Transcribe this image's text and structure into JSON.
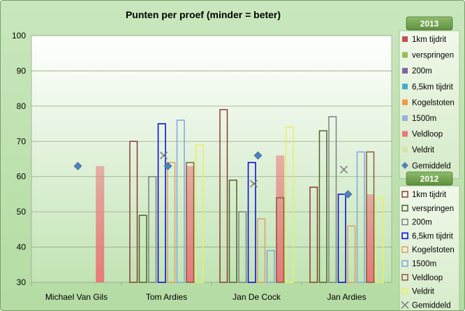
{
  "chart_data": {
    "type": "bar",
    "title": "Punten per proef (minder = beter)",
    "categories": [
      "Michael Van Gils",
      "Tom Ardies",
      "Jan De Cock",
      "Jan Ardies"
    ],
    "ylim": [
      30,
      100
    ],
    "yticks": [
      30,
      40,
      50,
      60,
      70,
      80,
      90,
      100
    ],
    "grid": true,
    "legend_position": "right",
    "groups": [
      {
        "name": "2013",
        "style": "filled",
        "series": [
          {
            "name": "1km tijdrit",
            "color": "#c0504d",
            "values": [
              null,
              null,
              null,
              null
            ]
          },
          {
            "name": "verspringen",
            "color": "#9bbb59",
            "values": [
              null,
              null,
              null,
              null
            ]
          },
          {
            "name": "200m",
            "color": "#8064a2",
            "values": [
              null,
              null,
              null,
              null
            ]
          },
          {
            "name": "6,5km tijdrit",
            "color": "#4bacc6",
            "values": [
              null,
              null,
              null,
              null
            ]
          },
          {
            "name": "Kogelstoten",
            "color": "#f79646",
            "values": [
              null,
              null,
              null,
              null
            ]
          },
          {
            "name": "1500m",
            "color": "#95b3d7",
            "values": [
              null,
              null,
              null,
              null
            ]
          },
          {
            "name": "Veldloop",
            "color": "#e87a7a",
            "values": [
              63,
              63,
              66,
              55
            ]
          },
          {
            "name": "Veldrit",
            "color": "#d7e4a4",
            "values": [
              null,
              null,
              null,
              null
            ]
          }
        ],
        "average": {
          "name": "Gemiddeld",
          "marker": "diamond",
          "color": "#4f81bd",
          "values": [
            63,
            63,
            66,
            55
          ]
        }
      },
      {
        "name": "2012",
        "style": "outline",
        "series": [
          {
            "name": "1km tijdrit",
            "color": "#943634",
            "values": [
              null,
              70,
              79,
              57
            ]
          },
          {
            "name": "verspringen",
            "color": "#4f6228",
            "values": [
              null,
              49,
              59,
              73
            ]
          },
          {
            "name": "200m",
            "color": "#808080",
            "values": [
              null,
              60,
              50,
              77
            ]
          },
          {
            "name": "6,5km tijdrit",
            "color": "#0000e0",
            "values": [
              null,
              75,
              64,
              55
            ]
          },
          {
            "name": "Kogelstoten",
            "color": "#e0a060",
            "values": [
              null,
              64,
              48,
              46
            ]
          },
          {
            "name": "1500m",
            "color": "#7fa7e0",
            "values": [
              null,
              76,
              39,
              67
            ]
          },
          {
            "name": "Veldloop",
            "color": "#8b5a3c",
            "values": [
              null,
              64,
              54,
              67
            ]
          },
          {
            "name": "Veldrit",
            "color": "#e8f060",
            "values": [
              null,
              69,
              74,
              54
            ]
          }
        ],
        "average": {
          "name": "Gemiddeld",
          "marker": "x",
          "color": "#7f7f7f",
          "values": [
            null,
            66,
            58,
            62
          ]
        }
      }
    ]
  }
}
